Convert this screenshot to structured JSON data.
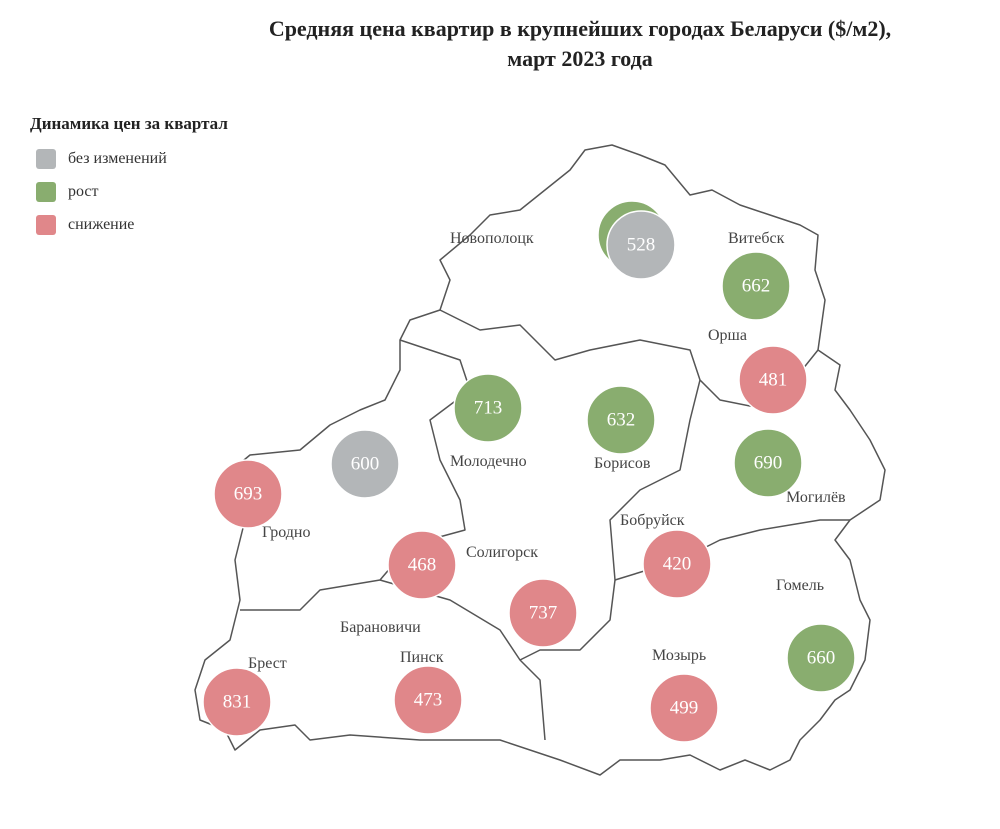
{
  "title_line1": "Средняя цена квартир в крупнейших городах Беларуси ($/м2),",
  "title_line2": "март 2023 года",
  "legend": {
    "title": "Динамика цен за квартал",
    "items": [
      {
        "label": "без изменений",
        "color": "#b3b6b8"
      },
      {
        "label": "рост",
        "color": "#89ad6f"
      },
      {
        "label": "снижение",
        "color": "#e0878a"
      }
    ]
  },
  "cities": [
    {
      "name": "Новополоцк",
      "value": null,
      "trend": "рост"
    },
    {
      "name": "",
      "value": 528,
      "trend": "без изменений"
    },
    {
      "name": "Витебск",
      "value": 662,
      "trend": "рост"
    },
    {
      "name": "Орша",
      "value": 481,
      "trend": "снижение"
    },
    {
      "name": "Молодечно",
      "value": 713,
      "trend": "рост"
    },
    {
      "name": "Борисов",
      "value": 632,
      "trend": "рост"
    },
    {
      "name": "",
      "value": 600,
      "trend": "без изменений"
    },
    {
      "name": "Могилёв",
      "value": 690,
      "trend": "рост"
    },
    {
      "name": "Гродно",
      "value": 693,
      "trend": "снижение"
    },
    {
      "name": "Бобруйск",
      "value": 420,
      "trend": "снижение"
    },
    {
      "name": "Солигорск",
      "value": 468,
      "trend": "снижение"
    },
    {
      "name": "Барановичи",
      "value": 737,
      "trend": "снижение"
    },
    {
      "name": "Гомель",
      "value": 660,
      "trend": "рост"
    },
    {
      "name": "Брест",
      "value": 831,
      "trend": "снижение"
    },
    {
      "name": "Пинск",
      "value": 473,
      "trend": "снижение"
    },
    {
      "name": "Мозырь",
      "value": 499,
      "trend": "снижение"
    }
  ]
}
